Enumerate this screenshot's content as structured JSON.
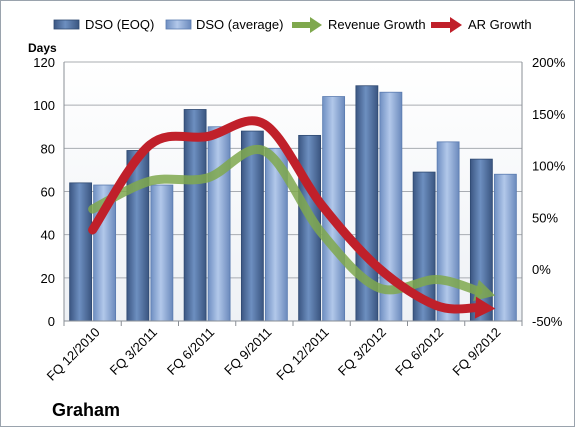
{
  "chart_data": {
    "type": "bar",
    "categories": [
      "FQ 12/2010",
      "FQ 3/2011",
      "FQ 6/2011",
      "FQ 9/2011",
      "FQ 12/2011",
      "FQ 3/2012",
      "FQ 6/2012",
      "FQ 9/2012"
    ],
    "series": [
      {
        "name": "DSO (EOQ)",
        "axis": "left",
        "kind": "bar",
        "color": "#4a6a9a",
        "values": [
          64,
          79,
          98,
          88,
          86,
          109,
          69,
          75
        ]
      },
      {
        "name": "DSO (average)",
        "axis": "left",
        "kind": "bar",
        "color": "#7f9fd0",
        "values": [
          63,
          63,
          90,
          80,
          104,
          106,
          83,
          68
        ]
      },
      {
        "name": "Revenue Growth",
        "axis": "right",
        "kind": "arrow-line",
        "color": "#7fa84d",
        "values": [
          0.58,
          0.85,
          0.88,
          1.14,
          0.35,
          -0.18,
          -0.1,
          -0.25
        ]
      },
      {
        "name": "AR Growth",
        "axis": "right",
        "kind": "arrow-line",
        "color": "#c0202a",
        "values": [
          0.38,
          1.2,
          1.28,
          1.4,
          0.62,
          0.01,
          -0.35,
          -0.38
        ]
      }
    ],
    "y_left": {
      "label": "Days",
      "ylim": [
        0,
        120
      ],
      "ticks": [
        0,
        20,
        40,
        60,
        80,
        100,
        120
      ]
    },
    "y_right": {
      "ylim": [
        -0.5,
        2.0
      ],
      "ticks": [
        "-50%",
        "0%",
        "50%",
        "100%",
        "150%",
        "200%"
      ]
    },
    "grid": true,
    "legend": "top",
    "company_label": "Graham"
  }
}
